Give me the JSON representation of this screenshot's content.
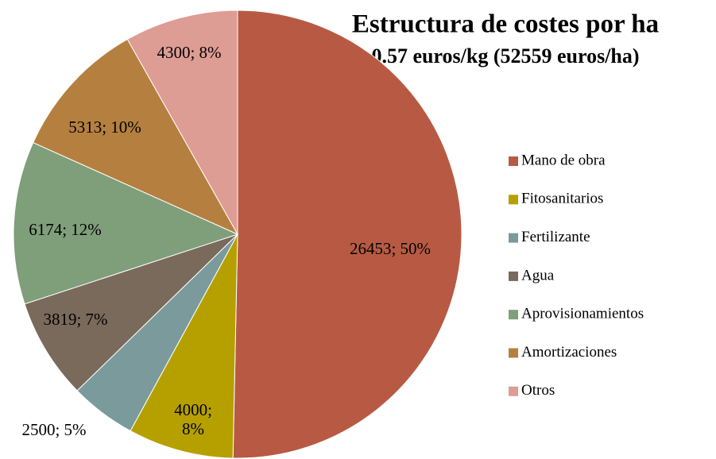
{
  "chart_data": {
    "type": "pie",
    "title": "Estructura de costes por ha",
    "subtitle": "0.57 euros/kg (52559 euros/ha)",
    "categories": [
      "Mano de obra",
      "Fitosanitarios",
      "Fertilizante",
      "Agua",
      "Aprovisionamientos",
      "Amortizaciones",
      "Otros"
    ],
    "values": [
      26453,
      4000,
      2500,
      3819,
      6174,
      5313,
      4300
    ],
    "value_labels": [
      "26453; 50%",
      "4000; 8%",
      "2500; 5%",
      "3819; 7%",
      "6174; 12%",
      "5313; 10%",
      "4300; 8%"
    ],
    "colors": [
      "#b85a43",
      "#b5a000",
      "#7a9a9c",
      "#7a6a5c",
      "#7f9e7a",
      "#b5803f",
      "#dd9c94"
    ],
    "legend": "right"
  }
}
